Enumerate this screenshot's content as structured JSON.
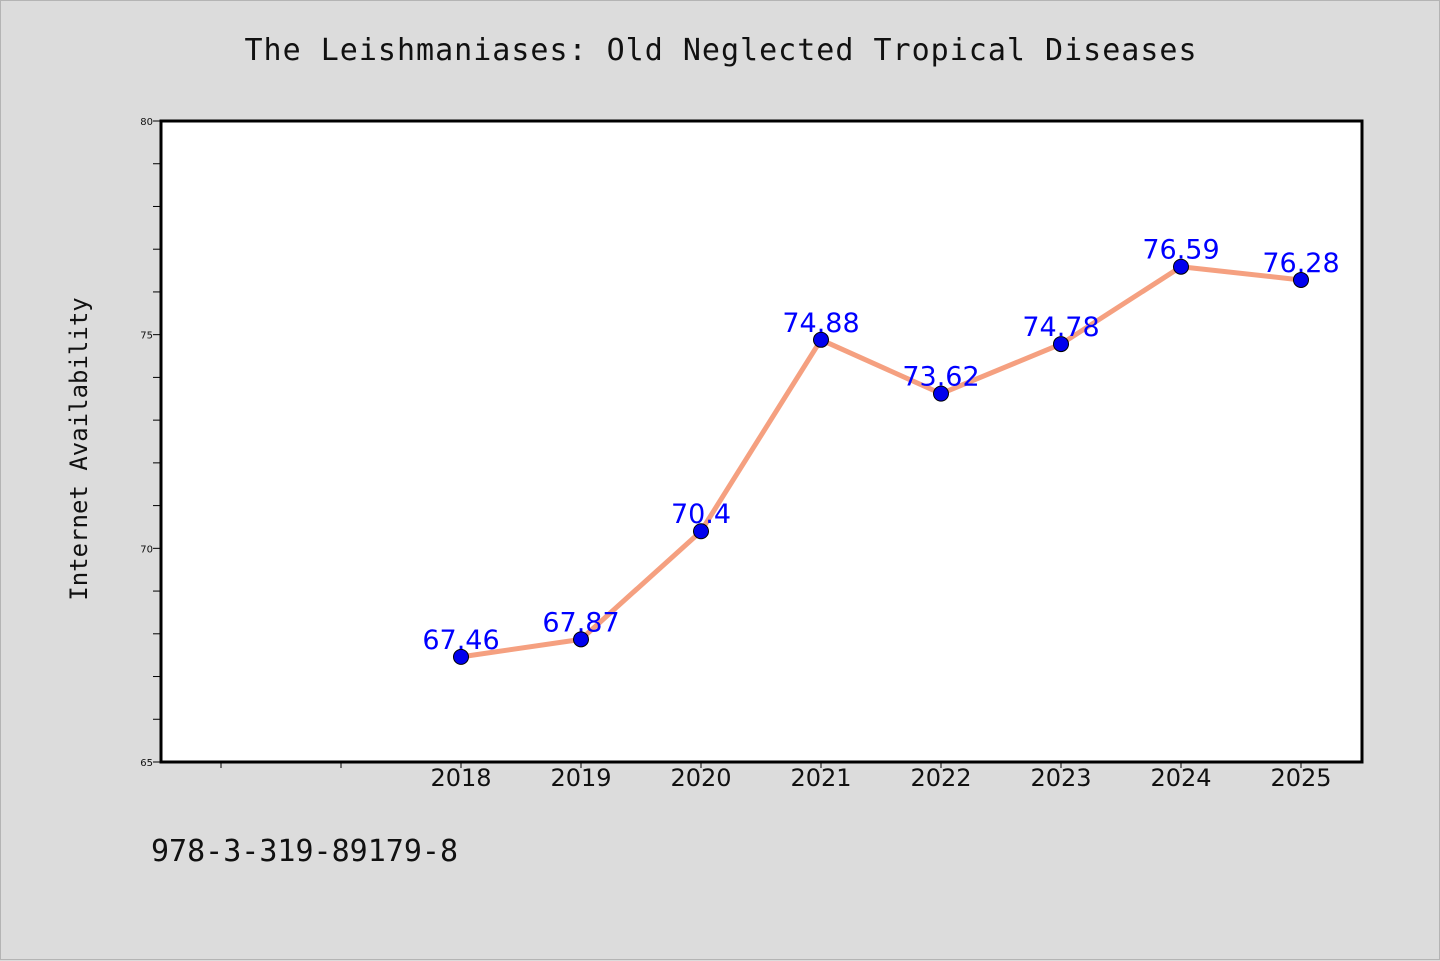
{
  "chart_data": {
    "type": "line",
    "title": "The Leishmaniases: Old Neglected Tropical Diseases",
    "ylabel": "Internet Availability",
    "xlabel": "",
    "categories": [
      "2018",
      "2019",
      "2020",
      "2021",
      "2022",
      "2023",
      "2024",
      "2025"
    ],
    "series": [
      {
        "values": [
          67.46,
          67.87,
          70.4,
          74.88,
          73.62,
          74.78,
          76.59,
          76.28
        ],
        "labels": [
          "67.46",
          "67.87",
          "70.4",
          "74.88",
          "73.62",
          "74.78",
          "76.59",
          "76.28"
        ]
      }
    ],
    "ylim": [
      65,
      80
    ],
    "yticks": [
      "65",
      "70",
      "75",
      "80"
    ],
    "grid": false,
    "line_color": "#f5a080",
    "marker_color": "#0000ee",
    "label_color": "#0000ff"
  },
  "footer": {
    "isbn": "978-3-319-89179-8"
  }
}
